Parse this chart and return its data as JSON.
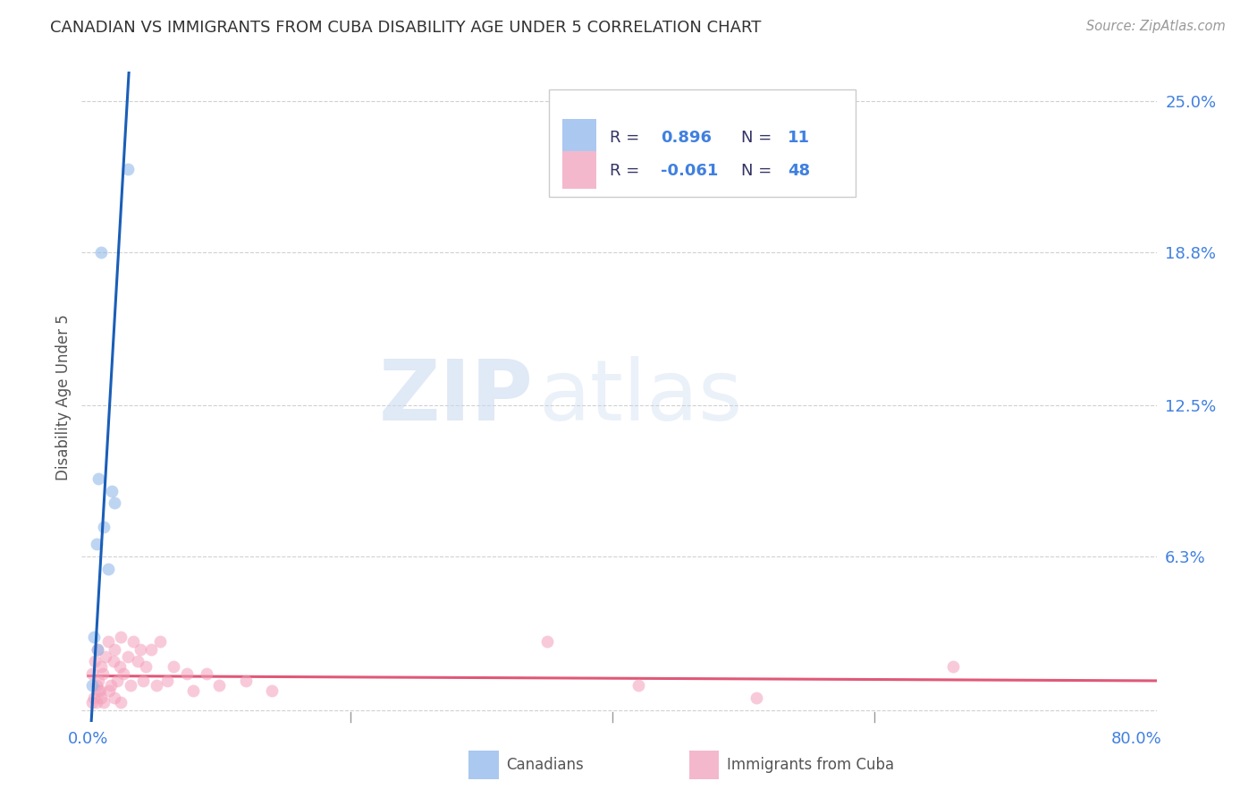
{
  "title": "CANADIAN VS IMMIGRANTS FROM CUBA DISABILITY AGE UNDER 5 CORRELATION CHART",
  "source": "Source: ZipAtlas.com",
  "ylabel": "Disability Age Under 5",
  "xlim": [
    -0.005,
    0.815
  ],
  "ylim": [
    -0.005,
    0.262
  ],
  "xtick_positions": [
    0.0,
    0.2,
    0.4,
    0.6,
    0.8
  ],
  "xticklabels": [
    "0.0%",
    "",
    "",
    "",
    "80.0%"
  ],
  "yticks_right": [
    0.0,
    0.063,
    0.125,
    0.188,
    0.25
  ],
  "ytick_labels_right": [
    "",
    "6.3%",
    "12.5%",
    "18.8%",
    "25.0%"
  ],
  "blue_scatter_color": "#8ab4e8",
  "pink_scatter_color": "#f4a0bb",
  "blue_line_color": "#1a5eb8",
  "pink_line_color": "#e05878",
  "blue_legend_box": "#aac8f0",
  "pink_legend_box": "#f4b8cc",
  "canadians_x": [
    0.03,
    0.01,
    0.008,
    0.006,
    0.012,
    0.015,
    0.004,
    0.003,
    0.018,
    0.02,
    0.007
  ],
  "canadians_y": [
    0.222,
    0.188,
    0.095,
    0.068,
    0.075,
    0.058,
    0.03,
    0.01,
    0.09,
    0.085,
    0.025
  ],
  "cuba_x": [
    0.003,
    0.005,
    0.006,
    0.007,
    0.008,
    0.009,
    0.01,
    0.011,
    0.013,
    0.015,
    0.017,
    0.019,
    0.02,
    0.022,
    0.024,
    0.025,
    0.027,
    0.03,
    0.032,
    0.034,
    0.038,
    0.04,
    0.042,
    0.044,
    0.048,
    0.052,
    0.055,
    0.06,
    0.065,
    0.075,
    0.08,
    0.09,
    0.1,
    0.12,
    0.14,
    0.003,
    0.004,
    0.006,
    0.008,
    0.01,
    0.012,
    0.016,
    0.02,
    0.025,
    0.35,
    0.42,
    0.51,
    0.66
  ],
  "cuba_y": [
    0.015,
    0.02,
    0.01,
    0.025,
    0.012,
    0.008,
    0.018,
    0.015,
    0.022,
    0.028,
    0.01,
    0.02,
    0.025,
    0.012,
    0.018,
    0.03,
    0.015,
    0.022,
    0.01,
    0.028,
    0.02,
    0.025,
    0.012,
    0.018,
    0.025,
    0.01,
    0.028,
    0.012,
    0.018,
    0.015,
    0.008,
    0.015,
    0.01,
    0.012,
    0.008,
    0.003,
    0.005,
    0.003,
    0.008,
    0.005,
    0.003,
    0.008,
    0.005,
    0.003,
    0.028,
    0.01,
    0.005,
    0.018
  ],
  "blue_line_x": [
    -0.002,
    0.031
  ],
  "blue_line_y": [
    -0.045,
    0.262
  ],
  "pink_line_x": [
    0.0,
    0.82
  ],
  "pink_line_y": [
    0.014,
    0.012
  ],
  "watermark_zip": "ZIP",
  "watermark_atlas": "atlas",
  "background_color": "#ffffff",
  "grid_color": "#cccccc",
  "title_color": "#333333",
  "axis_label_color": "#555555",
  "right_tick_color": "#4080e0",
  "marker_size": 100,
  "marker_alpha": 0.55,
  "legend_R_color": "#333366",
  "legend_N_color": "#4080e0"
}
